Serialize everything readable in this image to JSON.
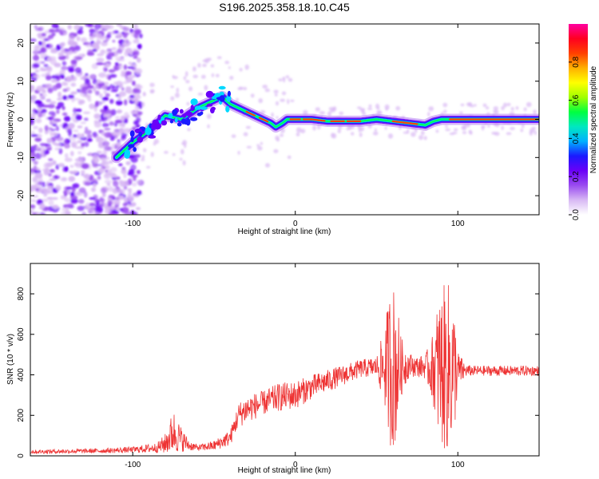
{
  "title": "S196.2025.358.18.10.C45",
  "chart_data": [
    {
      "type": "heatmap",
      "name": "spectrogram",
      "xlabel": "Height of straight line (km)",
      "ylabel": "Frequency (Hz)",
      "xlim": [
        -163,
        150
      ],
      "ylim": [
        -25,
        25
      ],
      "x_ticks": [
        -100,
        0,
        100
      ],
      "y_ticks": [
        -20,
        -10,
        0,
        10,
        20
      ],
      "colorbar": {
        "label": "Normalized spectral amplitude",
        "range": [
          0,
          1
        ],
        "ticks": [
          "0.0",
          "0.2",
          "0.4",
          "0.6",
          "0.8"
        ],
        "colors": [
          "#ffffff",
          "#d8b8f4",
          "#9a4cf0",
          "#6a00f8",
          "#1a1aff",
          "#00b0ff",
          "#00e8c0",
          "#00ff40",
          "#a0ff00",
          "#ffff00",
          "#ffb000",
          "#ff4000",
          "#ff0020",
          "#ff00a0"
        ]
      },
      "ridge": {
        "x": [
          -110,
          -100,
          -90,
          -80,
          -70,
          -60,
          -50,
          -45,
          -40,
          -35,
          -30,
          -25,
          -20,
          -15,
          -12,
          -8,
          -5,
          0,
          10,
          20,
          30,
          40,
          50,
          60,
          70,
          80,
          85,
          90,
          95,
          100,
          120,
          150
        ],
        "freq": [
          -10,
          -6,
          -3,
          1,
          0,
          3,
          5,
          6,
          4,
          3,
          2,
          1,
          0,
          -1,
          -2,
          -1,
          0,
          0,
          0,
          -0.5,
          -0.5,
          -0.5,
          0,
          -0.5,
          -1,
          -1.5,
          -0.5,
          0,
          0,
          0,
          0,
          0
        ]
      }
    },
    {
      "type": "line",
      "name": "snr",
      "xlabel": "Height of straight line (km)",
      "ylabel": "SNR (10 * v/v)",
      "xlim": [
        -163,
        150
      ],
      "ylim": [
        0,
        950
      ],
      "x_ticks": [
        -100,
        0,
        100
      ],
      "y_ticks": [
        0,
        200,
        400,
        600,
        800
      ],
      "color": "#ee3333",
      "envelope": {
        "x": [
          -163,
          -120,
          -100,
          -85,
          -80,
          -75,
          -70,
          -65,
          -60,
          -50,
          -40,
          -35,
          -30,
          -20,
          -10,
          0,
          10,
          20,
          30,
          40,
          50,
          55,
          58,
          60,
          62,
          65,
          70,
          75,
          80,
          85,
          88,
          92,
          95,
          98,
          100,
          105,
          110,
          120,
          130,
          140,
          150
        ],
        "mean": [
          20,
          25,
          30,
          40,
          60,
          120,
          80,
          50,
          40,
          50,
          90,
          200,
          230,
          260,
          290,
          300,
          340,
          370,
          400,
          430,
          440,
          440,
          440,
          440,
          440,
          440,
          450,
          440,
          440,
          430,
          430,
          430,
          430,
          420,
          420,
          420,
          420,
          420,
          420,
          420,
          420
        ],
        "amp": [
          10,
          12,
          15,
          25,
          50,
          110,
          60,
          25,
          15,
          25,
          40,
          60,
          70,
          60,
          70,
          70,
          60,
          55,
          50,
          45,
          50,
          200,
          380,
          420,
          380,
          150,
          60,
          50,
          60,
          180,
          360,
          420,
          430,
          300,
          100,
          30,
          25,
          25,
          25,
          25,
          25
        ]
      }
    }
  ]
}
